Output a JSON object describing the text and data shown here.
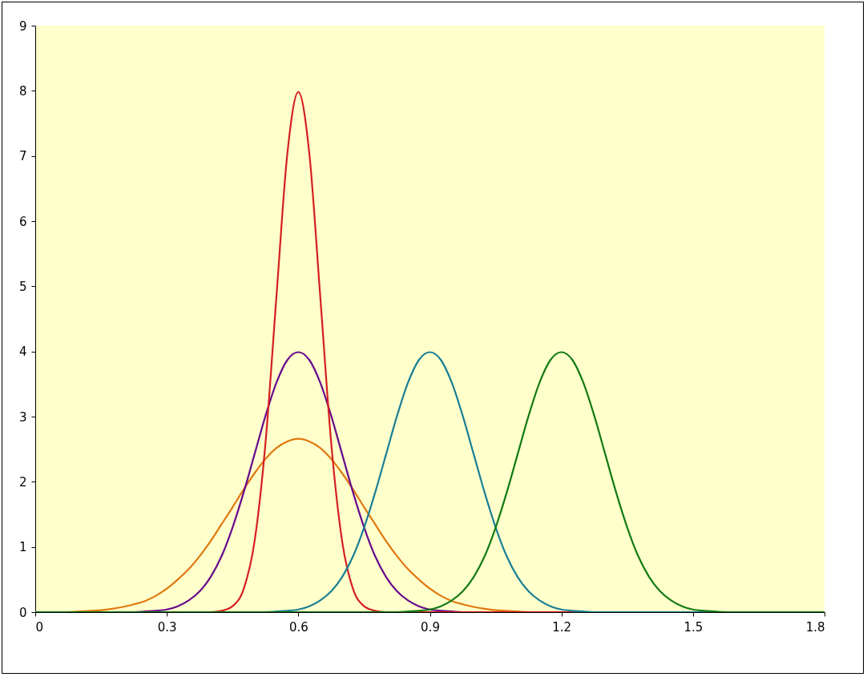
{
  "chart_data": {
    "type": "line",
    "xlim": [
      0,
      1.8
    ],
    "xticks": [
      0,
      0.3,
      0.6,
      0.9,
      1.2,
      1.5,
      1.8
    ],
    "ylim": [
      0,
      9
    ],
    "yticks": [
      0,
      1,
      2,
      3,
      4,
      5,
      6,
      7,
      8,
      9
    ],
    "series": [
      {
        "color": "#e07810",
        "x": [
          0,
          0.075,
          0.1,
          0.125,
          0.15,
          0.175,
          0.2,
          0.225,
          0.25,
          0.275,
          0.3,
          0.325,
          0.35,
          0.375,
          0.4,
          0.425,
          0.45,
          0.475,
          0.5,
          0.525,
          0.55,
          0.575,
          0.6,
          0.625,
          0.65,
          0.675,
          0.7,
          0.725,
          0.75,
          0.775,
          0.8,
          0.825,
          0.85,
          0.875,
          0.9,
          0.925,
          0.95,
          0.975,
          1.0,
          1.025,
          1.05,
          1.075,
          1.1,
          1.125,
          1.8
        ],
        "values": [
          0,
          0,
          0.01,
          0.02,
          0.03,
          0.05,
          0.08,
          0.12,
          0.17,
          0.25,
          0.36,
          0.5,
          0.66,
          0.86,
          1.09,
          1.35,
          1.61,
          1.88,
          2.13,
          2.35,
          2.52,
          2.62,
          2.66,
          2.62,
          2.52,
          2.35,
          2.13,
          1.88,
          1.61,
          1.35,
          1.09,
          0.86,
          0.66,
          0.5,
          0.36,
          0.25,
          0.17,
          0.12,
          0.08,
          0.05,
          0.03,
          0.02,
          0.01,
          0,
          0
        ]
      },
      {
        "color": "#660a8c",
        "x": [
          0,
          0.225,
          0.25,
          0.275,
          0.3,
          0.325,
          0.35,
          0.375,
          0.4,
          0.425,
          0.45,
          0.475,
          0.5,
          0.525,
          0.55,
          0.575,
          0.6,
          0.625,
          0.65,
          0.675,
          0.7,
          0.725,
          0.75,
          0.775,
          0.8,
          0.825,
          0.85,
          0.875,
          0.9,
          0.925,
          0.95,
          0.975,
          1.8
        ],
        "values": [
          0,
          0,
          0.01,
          0.02,
          0.04,
          0.09,
          0.18,
          0.32,
          0.54,
          0.86,
          1.3,
          1.83,
          2.42,
          3.01,
          3.52,
          3.87,
          3.99,
          3.87,
          3.52,
          3.01,
          2.42,
          1.83,
          1.3,
          0.86,
          0.54,
          0.32,
          0.18,
          0.09,
          0.04,
          0.02,
          0.01,
          0,
          0
        ]
      },
      {
        "color": "#d42020",
        "x": [
          0,
          0.4,
          0.425,
          0.45,
          0.475,
          0.5,
          0.525,
          0.55,
          0.575,
          0.6,
          0.625,
          0.65,
          0.675,
          0.7,
          0.725,
          0.75,
          0.775,
          0.8,
          1.8
        ],
        "values": [
          0,
          0,
          0.02,
          0.09,
          0.35,
          1.08,
          2.59,
          4.84,
          7.04,
          7.98,
          7.04,
          4.84,
          2.59,
          1.08,
          0.35,
          0.09,
          0.02,
          0,
          0
        ]
      },
      {
        "color": "#1a7f96",
        "x": [
          0,
          0.525,
          0.55,
          0.575,
          0.6,
          0.625,
          0.65,
          0.675,
          0.7,
          0.725,
          0.75,
          0.775,
          0.8,
          0.825,
          0.85,
          0.875,
          0.9,
          0.925,
          0.95,
          0.975,
          1.0,
          1.025,
          1.05,
          1.075,
          1.1,
          1.125,
          1.15,
          1.175,
          1.2,
          1.225,
          1.25,
          1.275,
          1.8
        ],
        "values": [
          0,
          0,
          0.01,
          0.02,
          0.04,
          0.09,
          0.18,
          0.32,
          0.54,
          0.86,
          1.3,
          1.83,
          2.42,
          3.01,
          3.52,
          3.87,
          3.99,
          3.87,
          3.52,
          3.01,
          2.42,
          1.83,
          1.3,
          0.86,
          0.54,
          0.32,
          0.18,
          0.09,
          0.04,
          0.02,
          0.01,
          0,
          0
        ]
      },
      {
        "color": "#137a13",
        "x": [
          0,
          0.825,
          0.85,
          0.875,
          0.9,
          0.925,
          0.95,
          0.975,
          1.0,
          1.025,
          1.05,
          1.075,
          1.1,
          1.125,
          1.15,
          1.175,
          1.2,
          1.225,
          1.25,
          1.275,
          1.3,
          1.325,
          1.35,
          1.375,
          1.4,
          1.425,
          1.45,
          1.475,
          1.5,
          1.525,
          1.55,
          1.575,
          1.8
        ],
        "values": [
          0,
          0,
          0.01,
          0.02,
          0.04,
          0.09,
          0.18,
          0.32,
          0.54,
          0.86,
          1.3,
          1.83,
          2.42,
          3.01,
          3.52,
          3.87,
          3.99,
          3.87,
          3.52,
          3.01,
          2.42,
          1.83,
          1.3,
          0.86,
          0.54,
          0.32,
          0.18,
          0.09,
          0.04,
          0.02,
          0.01,
          0,
          0
        ]
      }
    ]
  }
}
